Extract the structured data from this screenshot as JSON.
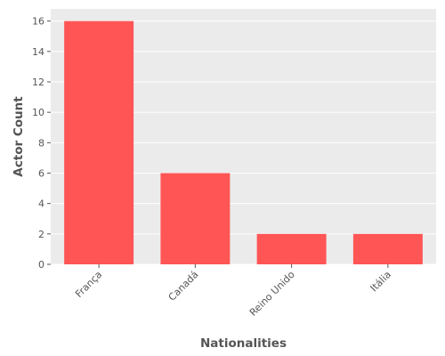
{
  "chart_data": {
    "type": "bar",
    "title": "",
    "xlabel": "Nationalities",
    "ylabel": "Actor Count",
    "categories": [
      "França",
      "Canadá",
      "Reino Unido",
      "Itália"
    ],
    "values": [
      16,
      6,
      2,
      2
    ],
    "ylim": [
      0,
      16.8
    ],
    "yticks": [
      0,
      2,
      4,
      6,
      8,
      10,
      12,
      14,
      16
    ],
    "grid": true,
    "bar_color": "#ff5555",
    "background_color": "#ebebeb",
    "grid_color": "#ffffff"
  }
}
